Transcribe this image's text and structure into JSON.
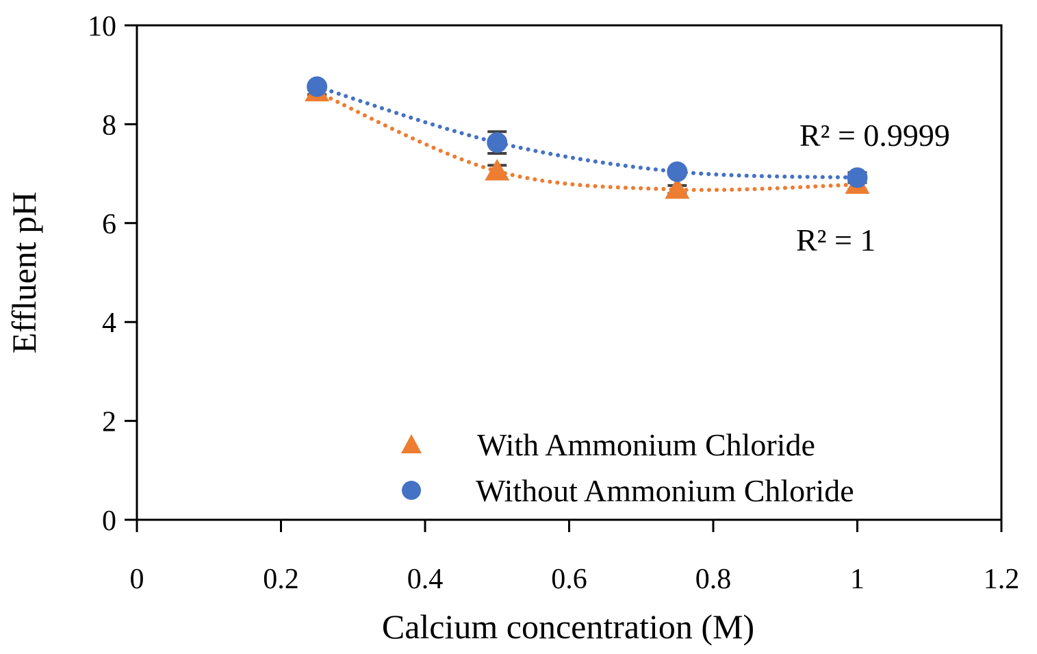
{
  "chart_data": {
    "type": "scatter",
    "title": "",
    "xlabel": "Calcium concentration (M)",
    "ylabel": "Effluent pH",
    "xlim": [
      0,
      1.2
    ],
    "ylim": [
      0,
      10
    ],
    "x_ticks": [
      0,
      0.2,
      0.4,
      0.6,
      0.8,
      1,
      1.2
    ],
    "x_tick_labels": [
      "0",
      "0.2",
      "0.4",
      "0.6",
      "0.8",
      "1",
      "1.2"
    ],
    "y_ticks": [
      0,
      2,
      4,
      6,
      8,
      10
    ],
    "y_tick_labels": [
      "0",
      "2",
      "4",
      "6",
      "8",
      "10"
    ],
    "grid": false,
    "legend_position": "bottom-right",
    "series": [
      {
        "name": "With Ammonium Chloride",
        "marker": "triangle",
        "color": "#ED7D31",
        "x": [
          0.25,
          0.5,
          0.75,
          1.0
        ],
        "y": [
          8.65,
          7.05,
          6.68,
          6.78
        ],
        "error": [
          0.05,
          0.12,
          0.08,
          0.1
        ],
        "trendline": {
          "type": "dotted",
          "r_squared_label": "R² = 1"
        }
      },
      {
        "name": "Without Ammonium Chloride",
        "marker": "circle",
        "color": "#4472C4",
        "x": [
          0.25,
          0.5,
          0.75,
          1.0
        ],
        "y": [
          8.76,
          7.63,
          7.04,
          6.92
        ],
        "error": [
          0.05,
          0.22,
          0.05,
          0.1
        ],
        "trendline": {
          "type": "dotted",
          "r_squared_label": "R² = 0.9999"
        }
      }
    ]
  }
}
